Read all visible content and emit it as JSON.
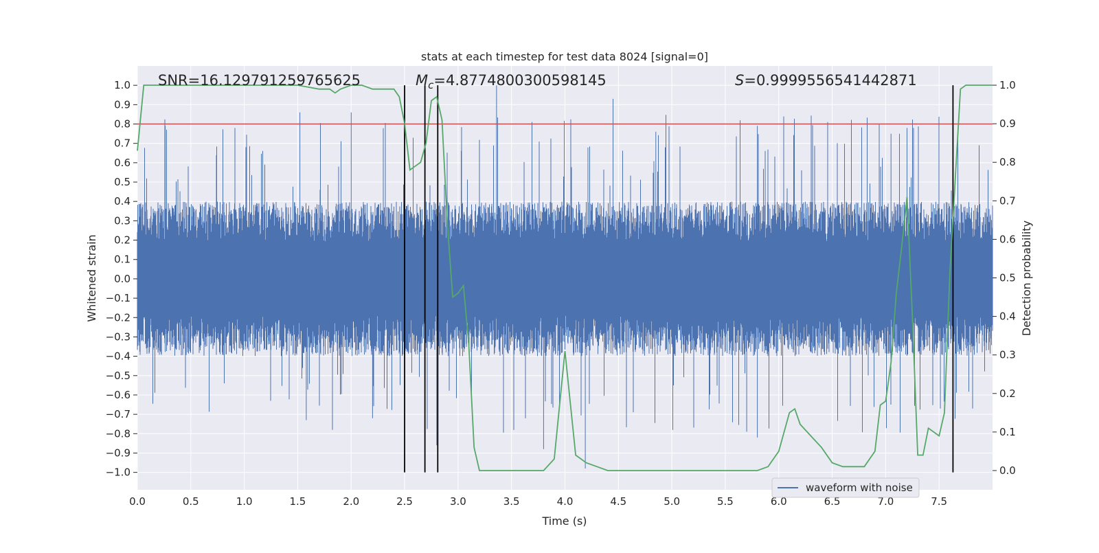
{
  "chart_data": {
    "type": "line",
    "title": "stats at each timestep for test data 8024 [signal=0]",
    "xlabel": "Time (s)",
    "ylabel": "Whitened strain",
    "y2label": "Detection probability",
    "xlim": [
      0,
      8.0
    ],
    "ylim": [
      -1.09,
      1.1
    ],
    "y2lim": [
      -0.05,
      1.05
    ],
    "x_ticks": [
      "0.0",
      "0.5",
      "1.0",
      "1.5",
      "2.0",
      "2.5",
      "3.0",
      "3.5",
      "4.0",
      "4.5",
      "5.0",
      "5.5",
      "6.0",
      "6.5",
      "7.0",
      "7.5"
    ],
    "y_ticks": [
      "1.0",
      "0.9",
      "0.8",
      "0.7",
      "0.6",
      "0.5",
      "0.4",
      "0.3",
      "0.2",
      "0.1",
      "0.0",
      "−0.1",
      "−0.2",
      "−0.3",
      "−0.4",
      "−0.5",
      "−0.6",
      "−0.7",
      "−0.8",
      "−0.9",
      "−1.0"
    ],
    "y2_ticks": [
      "1.0",
      "0.9",
      "0.8",
      "0.7",
      "0.6",
      "0.5",
      "0.4",
      "0.3",
      "0.2",
      "0.1",
      "0.0"
    ],
    "grid": true,
    "legend_placement": "lower-right",
    "stats": {
      "snr": "SNR=16.129791259765625",
      "mc_symbol": "M",
      "mc_sub": "c",
      "mc_value": "=4.8774800300598145",
      "s_symbol": "S",
      "s_value": "=0.9999556541442871"
    },
    "threshold": {
      "value": 0.8,
      "color": "#c44e52"
    },
    "vlines": [
      2.5,
      2.69,
      2.81,
      7.63
    ],
    "series": [
      {
        "name": "waveform with noise",
        "color": "#4c72b0",
        "kind": "noise",
        "amplitude_core": 0.38,
        "peak_max": 1.0,
        "trough_min": -0.98
      },
      {
        "color": "#55a868",
        "axis": "right",
        "x": [
          0.0,
          0.06,
          0.3,
          0.6,
          1.0,
          1.5,
          1.7,
          1.8,
          1.85,
          1.9,
          2.0,
          2.1,
          2.2,
          2.3,
          2.4,
          2.45,
          2.5,
          2.55,
          2.6,
          2.65,
          2.7,
          2.75,
          2.8,
          2.85,
          2.9,
          2.95,
          3.0,
          3.05,
          3.1,
          3.15,
          3.2,
          3.4,
          3.6,
          3.8,
          3.9,
          4.0,
          4.1,
          4.2,
          4.3,
          4.4,
          4.6,
          4.8,
          5.0,
          5.2,
          5.4,
          5.6,
          5.8,
          5.9,
          6.0,
          6.1,
          6.15,
          6.2,
          6.3,
          6.4,
          6.5,
          6.6,
          6.7,
          6.8,
          6.9,
          6.95,
          7.0,
          7.05,
          7.1,
          7.15,
          7.2,
          7.25,
          7.3,
          7.35,
          7.4,
          7.45,
          7.5,
          7.55,
          7.6,
          7.65,
          7.7,
          7.75,
          8.0
        ],
        "values": [
          0.83,
          1.0,
          1.0,
          1.0,
          1.0,
          1.0,
          0.99,
          0.99,
          0.98,
          0.99,
          1.0,
          1.0,
          0.99,
          0.99,
          0.99,
          0.97,
          0.9,
          0.78,
          0.79,
          0.8,
          0.85,
          0.96,
          0.97,
          0.91,
          0.64,
          0.45,
          0.46,
          0.48,
          0.33,
          0.06,
          0.0,
          0.0,
          0.0,
          0.0,
          0.03,
          0.31,
          0.04,
          0.02,
          0.01,
          0.0,
          0.0,
          0.0,
          0.0,
          0.0,
          0.0,
          0.0,
          0.0,
          0.01,
          0.05,
          0.15,
          0.16,
          0.12,
          0.09,
          0.06,
          0.02,
          0.01,
          0.01,
          0.01,
          0.05,
          0.17,
          0.18,
          0.28,
          0.46,
          0.58,
          0.71,
          0.4,
          0.04,
          0.04,
          0.11,
          0.1,
          0.09,
          0.15,
          0.51,
          0.75,
          0.99,
          1.0,
          1.0
        ]
      }
    ]
  }
}
